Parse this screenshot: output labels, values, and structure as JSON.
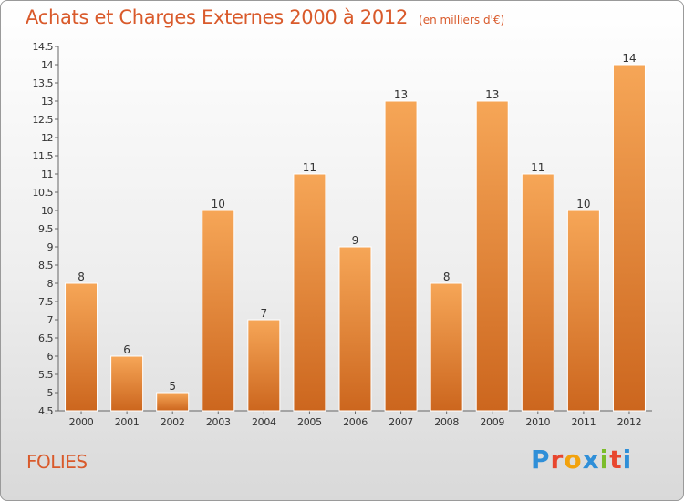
{
  "title": "Achats et Charges Externes 2000 à 2012",
  "subtitle": "(en milliers d'€)",
  "commune": "FOLIES",
  "logo": {
    "text": "Proxiti",
    "letters": [
      "P",
      "r",
      "o",
      "x",
      "i",
      "t",
      "i"
    ],
    "colors": [
      "#2f8fd8",
      "#e8462e",
      "#f2a20d",
      "#2f8fd8",
      "#7cbd2a",
      "#e8462e",
      "#2f8fd8"
    ]
  },
  "colors": {
    "bar_top": "#f6a657",
    "bar_bottom": "#cc661e",
    "title": "#d95a2b"
  },
  "chart_data": {
    "type": "bar",
    "categories": [
      "2000",
      "2001",
      "2002",
      "2003",
      "2004",
      "2005",
      "2006",
      "2007",
      "2008",
      "2009",
      "2010",
      "2011",
      "2012"
    ],
    "values": [
      8,
      6,
      5,
      10,
      7,
      11,
      9,
      13,
      8,
      13,
      11,
      10,
      14
    ],
    "data_labels": [
      "8",
      "6",
      "5",
      "10",
      "7",
      "11",
      "9",
      "13",
      "8",
      "13",
      "11",
      "10",
      "14"
    ],
    "ylim": [
      4.5,
      14.5
    ],
    "y_ticks": [
      "4.5",
      "5",
      "5.5",
      "6",
      "6.5",
      "7",
      "7.5",
      "8",
      "8.5",
      "9",
      "9.5",
      "10",
      "10.5",
      "11",
      "11.5",
      "12",
      "12.5",
      "13",
      "13.5",
      "14",
      "14.5"
    ],
    "grid": false,
    "xlabel": "",
    "ylabel": ""
  }
}
